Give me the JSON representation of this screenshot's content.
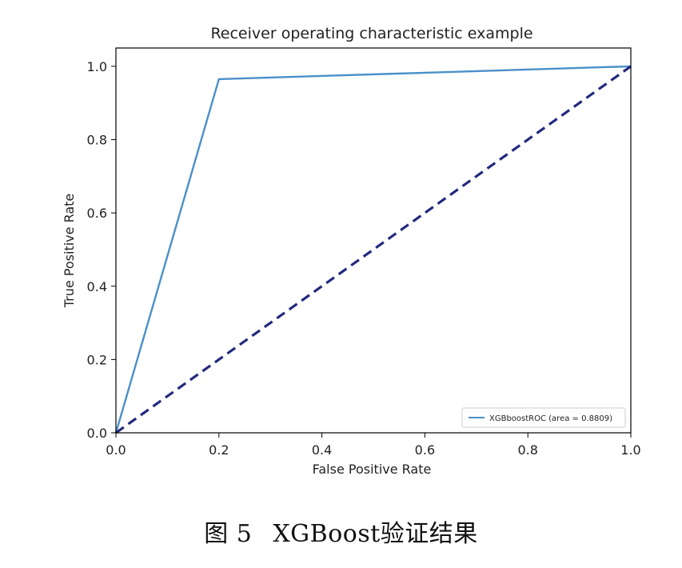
{
  "chart_data": {
    "type": "line",
    "title": "Receiver operating characteristic example",
    "xlabel": "False Positive Rate",
    "ylabel": "True Positive Rate",
    "xlim": [
      0.0,
      1.0
    ],
    "ylim": [
      0.0,
      1.05
    ],
    "xticks": [
      0.0,
      0.2,
      0.4,
      0.6,
      0.8,
      1.0
    ],
    "yticks": [
      0.0,
      0.2,
      0.4,
      0.6,
      0.8,
      1.0
    ],
    "xtick_labels": [
      "0.0",
      "0.2",
      "0.4",
      "0.6",
      "0.8",
      "1.0"
    ],
    "ytick_labels": [
      "0.0",
      "0.2",
      "0.4",
      "0.6",
      "0.8",
      "1.0"
    ],
    "grid": false,
    "legend_position": "lower-right",
    "series": [
      {
        "name": "XGBboostROC (area = 0.8809)",
        "color": "#4a90c8",
        "style": "solid",
        "x": [
          0.0,
          0.2,
          1.0
        ],
        "y": [
          0.0,
          0.965,
          1.0
        ]
      },
      {
        "color": "#232a7e",
        "style": "dashed",
        "x": [
          0.0,
          1.0
        ],
        "y": [
          0.0,
          1.0
        ]
      }
    ]
  },
  "caption": {
    "label": "图 5",
    "text": "XGBoost验证结果"
  }
}
